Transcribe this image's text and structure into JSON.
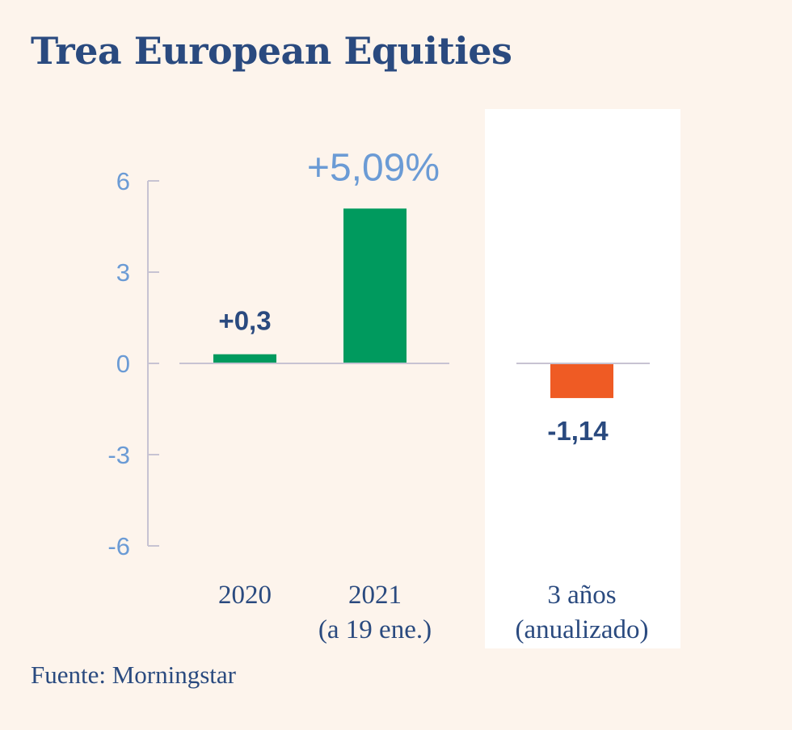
{
  "chart_data": {
    "type": "bar",
    "title": "Trea European Equities",
    "categories": [
      {
        "line1": "2020",
        "line2": ""
      },
      {
        "line1": "2021",
        "line2": "(a 19 ene.)"
      },
      {
        "line1": "3 años",
        "line2": "(anualizado)"
      }
    ],
    "values": [
      0.3,
      5.09,
      -1.14
    ],
    "value_labels": [
      "+0,3",
      "+5,09%",
      "-1,14"
    ],
    "highlighted_label_index": 1,
    "highlighted_panel_index": 2,
    "yticks": [
      6,
      3,
      0,
      -3,
      -6
    ],
    "ytick_labels": [
      "6",
      "3",
      "0",
      "-3",
      "-6"
    ],
    "ylim": [
      -6,
      6
    ],
    "xlabel": "",
    "ylabel": "",
    "colors": {
      "positive": "#009a5e",
      "negative": "#ef5b24",
      "axis": "#c7c3d2",
      "tick_label": "#6b9bd5",
      "value_label": "#2a4a7f",
      "highlight_label": "#6b9bd5",
      "panel_bg": "#ffffff"
    }
  },
  "source": "Fuente: Morningstar"
}
